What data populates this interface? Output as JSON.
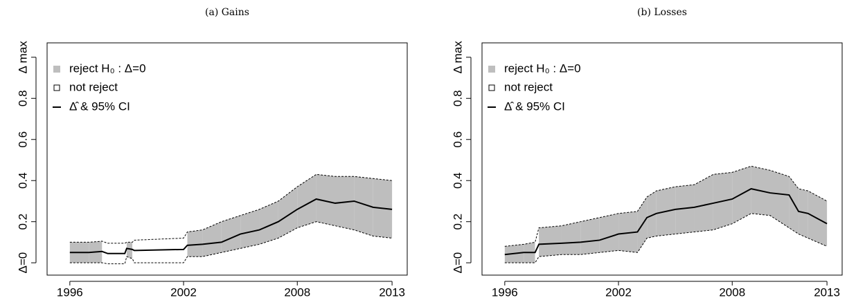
{
  "chart_data": [
    {
      "type": "band-line",
      "title": "(a) Gains",
      "legend": [
        "reject H₀ : Δ=0",
        "not reject",
        "Δ̂ & 95% CI"
      ],
      "band_colors": [
        "#bebebe",
        "#ffffff"
      ],
      "line_color": "#000000",
      "x": [
        1996,
        1997,
        1997.7,
        1998,
        1998.9,
        1999,
        1999.3,
        1999.4,
        2002,
        2002.2,
        2003,
        2004,
        2005,
        2006,
        2007,
        2008,
        2009,
        2010,
        2011,
        2012,
        2013
      ],
      "estimate": [
        0.05,
        0.05,
        0.055,
        0.045,
        0.045,
        0.07,
        0.065,
        0.06,
        0.065,
        0.085,
        0.09,
        0.1,
        0.14,
        0.16,
        0.2,
        0.26,
        0.31,
        0.29,
        0.3,
        0.27,
        0.26
      ],
      "lower": [
        0.0,
        0.0,
        0.0,
        -0.005,
        -0.005,
        0.03,
        0.02,
        0.0,
        0.0,
        0.03,
        0.03,
        0.05,
        0.07,
        0.09,
        0.12,
        0.17,
        0.2,
        0.18,
        0.16,
        0.13,
        0.12
      ],
      "upper": [
        0.1,
        0.1,
        0.105,
        0.095,
        0.095,
        0.1,
        0.1,
        0.11,
        0.12,
        0.15,
        0.16,
        0.2,
        0.23,
        0.26,
        0.3,
        0.37,
        0.43,
        0.42,
        0.42,
        0.41,
        0.4
      ],
      "reject": [
        true,
        true,
        false,
        false,
        false,
        true,
        false,
        false,
        false,
        true,
        true,
        true,
        true,
        true,
        true,
        true,
        true,
        true,
        true,
        true,
        true
      ],
      "xlim": [
        1994.8,
        2013.8
      ],
      "xticks": [
        1996,
        2002,
        2008,
        2013
      ],
      "ylim": [
        -0.06,
        1.07
      ],
      "yticks": [
        {
          "value": 0,
          "label": "Δ=0"
        },
        0.2,
        0.4,
        0.6,
        0.8,
        {
          "value": 1,
          "label": "Δ max"
        }
      ]
    },
    {
      "type": "band-line",
      "title": "(b) Losses",
      "legend": [
        "reject H₀ : Δ=0",
        "not reject",
        "Δ̂ & 95% CI"
      ],
      "band_colors": [
        "#bebebe",
        "#ffffff"
      ],
      "line_color": "#000000",
      "x": [
        1996,
        1997,
        1997.6,
        1997.8,
        1999,
        2000,
        2001,
        2002,
        2003,
        2003.5,
        2004,
        2005,
        2006,
        2007,
        2008,
        2009,
        2010,
        2011,
        2011.5,
        2012,
        2013
      ],
      "estimate": [
        0.04,
        0.05,
        0.05,
        0.09,
        0.095,
        0.1,
        0.11,
        0.14,
        0.15,
        0.22,
        0.24,
        0.26,
        0.27,
        0.29,
        0.31,
        0.36,
        0.34,
        0.33,
        0.25,
        0.24,
        0.19
      ],
      "lower": [
        0.0,
        0.0,
        0.0,
        0.03,
        0.04,
        0.04,
        0.05,
        0.06,
        0.05,
        0.12,
        0.13,
        0.14,
        0.15,
        0.16,
        0.19,
        0.24,
        0.23,
        0.17,
        0.14,
        0.12,
        0.08
      ],
      "upper": [
        0.08,
        0.09,
        0.1,
        0.17,
        0.18,
        0.2,
        0.22,
        0.24,
        0.25,
        0.32,
        0.35,
        0.37,
        0.38,
        0.43,
        0.44,
        0.47,
        0.45,
        0.42,
        0.36,
        0.35,
        0.3
      ],
      "reject": [
        true,
        true,
        false,
        true,
        true,
        true,
        true,
        true,
        true,
        true,
        true,
        true,
        true,
        true,
        true,
        true,
        true,
        true,
        true,
        true,
        true
      ],
      "xlim": [
        1994.8,
        2013.8
      ],
      "xticks": [
        1996,
        2002,
        2008,
        2013
      ],
      "ylim": [
        -0.06,
        1.07
      ],
      "yticks": [
        {
          "value": 0,
          "label": "Δ=0"
        },
        0.2,
        0.4,
        0.6,
        0.8,
        {
          "value": 1,
          "label": "Δ max"
        }
      ]
    }
  ]
}
